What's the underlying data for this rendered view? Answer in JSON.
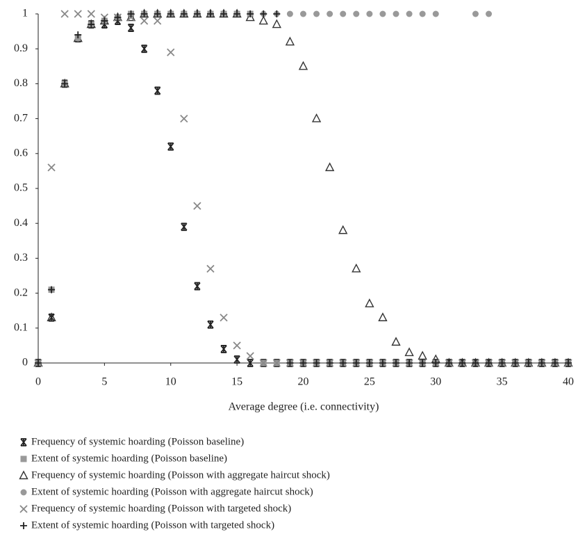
{
  "chart_data": {
    "type": "scatter",
    "x_label": "Average degree (i.e. connectivity)",
    "x": [
      0,
      1,
      2,
      3,
      4,
      5,
      6,
      7,
      8,
      9,
      10,
      11,
      12,
      13,
      14,
      15,
      16,
      17,
      18,
      19,
      20,
      21,
      22,
      23,
      24,
      25,
      26,
      27,
      28,
      29,
      30,
      31,
      32,
      33,
      34,
      35,
      36,
      37,
      38,
      39,
      40
    ],
    "xlim": [
      0,
      40
    ],
    "xticks": [
      0,
      5,
      10,
      15,
      20,
      25,
      30,
      35,
      40
    ],
    "ylim": [
      0,
      1
    ],
    "yticks": [
      0,
      0.1,
      0.2,
      0.3,
      0.4,
      0.5,
      0.6,
      0.7,
      0.8,
      0.9,
      1
    ],
    "series": [
      {
        "name": "Frequency of systemic hoarding (Poisson baseline)",
        "marker": "asterisk",
        "color": "#222222",
        "values": [
          0,
          0.13,
          0.8,
          0.93,
          0.97,
          0.97,
          0.98,
          0.96,
          0.9,
          0.78,
          0.62,
          0.39,
          0.22,
          0.11,
          0.04,
          0.01,
          0,
          0,
          0,
          0,
          0,
          0,
          0,
          0,
          0,
          0,
          0,
          0,
          0,
          0,
          0,
          0,
          0,
          0,
          0,
          0,
          0,
          0,
          0,
          0,
          0
        ]
      },
      {
        "name": "Extent of systemic hoarding (Poisson baseline)",
        "marker": "square",
        "color": "#999999",
        "values": [
          0,
          0.21,
          0.8,
          0.93,
          0.97,
          0.98,
          0.99,
          1,
          1,
          1,
          1,
          1,
          1,
          1,
          1,
          1,
          1,
          0,
          0,
          0,
          0,
          0,
          0,
          0,
          0,
          0,
          0,
          0,
          0,
          0,
          0,
          0,
          0,
          0,
          0,
          0,
          0,
          0,
          0,
          0,
          0
        ]
      },
      {
        "name": "Frequency of systemic hoarding (Poisson with aggregate haircut shock)",
        "marker": "triangle",
        "color": "#333333",
        "values": [
          0,
          0.13,
          0.8,
          0.93,
          0.97,
          0.98,
          0.99,
          0.99,
          1,
          1,
          1,
          1,
          1,
          1,
          1,
          1,
          0.99,
          0.98,
          0.97,
          0.92,
          0.85,
          0.7,
          0.56,
          0.38,
          0.27,
          0.17,
          0.13,
          0.06,
          0.03,
          0.02,
          0.01,
          0,
          0,
          0,
          0,
          0,
          0,
          0,
          0,
          0,
          0
        ]
      },
      {
        "name": "Extent of systemic hoarding (Poisson with aggregate haircut shock)",
        "marker": "circle",
        "color": "#999999",
        "values": [
          0,
          0.21,
          0.8,
          0.93,
          0.97,
          0.98,
          0.99,
          1,
          1,
          1,
          1,
          1,
          1,
          1,
          1,
          1,
          1,
          1,
          1,
          1,
          1,
          1,
          1,
          1,
          1,
          1,
          1,
          1,
          1,
          1,
          1,
          null,
          null,
          1,
          1,
          0,
          0,
          0,
          0,
          0,
          0
        ]
      },
      {
        "name": "Frequency of systemic hoarding (Poisson with targeted shock)",
        "marker": "x",
        "color": "#888888",
        "values": [
          0,
          0.56,
          1,
          1,
          1,
          0.99,
          0.99,
          0.99,
          0.98,
          0.98,
          0.89,
          0.7,
          0.45,
          0.27,
          0.13,
          0.05,
          0.02,
          0,
          0,
          0,
          0,
          0,
          0,
          0,
          0,
          0,
          0,
          0,
          0,
          0,
          0,
          0,
          0,
          0,
          0,
          0,
          0,
          0,
          0,
          0,
          0
        ]
      },
      {
        "name": "Extent of systemic hoarding (Poisson with targeted shock)",
        "marker": "plus",
        "color": "#222222",
        "values": [
          0,
          0.21,
          0.8,
          0.94,
          0.97,
          0.98,
          0.99,
          1,
          1,
          1,
          1,
          1,
          1,
          1,
          1,
          1,
          1,
          1,
          1,
          0,
          0,
          0,
          0,
          0,
          0,
          0,
          0,
          0,
          0,
          0,
          0,
          0,
          0,
          0,
          0,
          0,
          0,
          0,
          0,
          0,
          0
        ]
      }
    ]
  }
}
